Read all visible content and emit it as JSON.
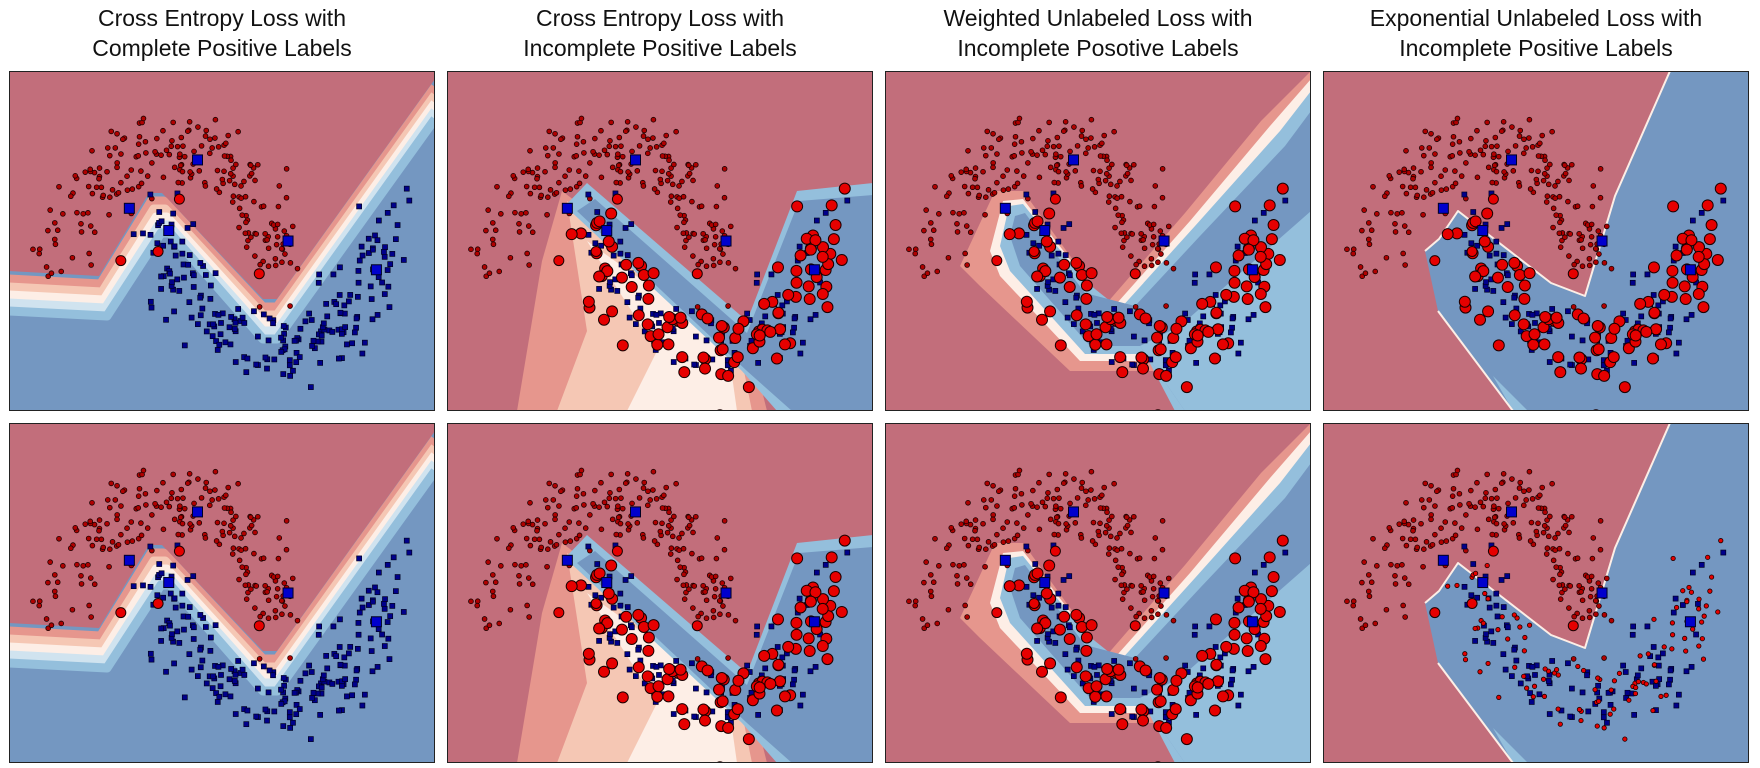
{
  "titles": [
    [
      "Cross Entropy Loss with",
      "Complete Positive Labels"
    ],
    [
      "Cross Entropy Loss with",
      "Incomplete Positive Labels"
    ],
    [
      "Weighted Unlabeled Loss with",
      "Incomplete Posotive Labels"
    ],
    [
      "Exponential Unlabeled Loss with",
      "Incomplete Positive Labels"
    ]
  ],
  "colors": {
    "class_red_region": "#c26e7b",
    "class_blue_region": "#7497c1",
    "light_blue_region": "#94bfdc",
    "light_red_region": "#e6968d",
    "pale_red_region": "#f5c7b4",
    "near_white_region": "#fdeee6",
    "red_marker": "#e60000",
    "dark_red_marker": "#b00000",
    "blue_marker": "#0000cd",
    "dark_blue_marker": "#00008b"
  },
  "chart_data": [
    {
      "type": "scatter",
      "id": "ce-complete-top",
      "title": "",
      "xlabel": "",
      "ylabel": "",
      "grid": false,
      "legend": "none",
      "series": [
        {
          "name": "",
          "marker": "circle"
        },
        {
          "name": "",
          "marker": "square"
        }
      ],
      "boundary_style": "smooth-v",
      "unlabeled_shown_as": "none"
    },
    {
      "type": "scatter",
      "id": "ce-incomplete-top",
      "title": "",
      "xlabel": "",
      "ylabel": "",
      "grid": false,
      "legend": "none",
      "series": [
        {
          "name": "",
          "marker": "circle"
        },
        {
          "name": "",
          "marker": "square"
        }
      ],
      "boundary_style": "wedge",
      "unlabeled_shown_as": "large-red-circles"
    },
    {
      "type": "scatter",
      "id": "wu-incomplete-top",
      "title": "",
      "xlabel": "",
      "ylabel": "",
      "grid": false,
      "legend": "none",
      "series": [
        {
          "name": "",
          "marker": "circle"
        },
        {
          "name": "",
          "marker": "square"
        }
      ],
      "boundary_style": "band",
      "unlabeled_shown_as": "large-red-circles"
    },
    {
      "type": "scatter",
      "id": "eu-incomplete-top",
      "title": "",
      "xlabel": "",
      "ylabel": "",
      "grid": false,
      "legend": "none",
      "series": [
        {
          "name": "",
          "marker": "circle"
        },
        {
          "name": "",
          "marker": "square"
        }
      ],
      "boundary_style": "sharp-v",
      "unlabeled_shown_as": "large-red-circles"
    },
    {
      "type": "scatter",
      "id": "ce-complete-bottom",
      "title": "",
      "xlabel": "",
      "ylabel": "",
      "grid": false,
      "legend": "none",
      "series": [
        {
          "name": "",
          "marker": "circle"
        },
        {
          "name": "",
          "marker": "square"
        }
      ],
      "boundary_style": "smooth-v",
      "unlabeled_shown_as": "none"
    },
    {
      "type": "scatter",
      "id": "ce-incomplete-bottom",
      "title": "",
      "xlabel": "",
      "ylabel": "",
      "grid": false,
      "legend": "none",
      "series": [
        {
          "name": "",
          "marker": "circle"
        },
        {
          "name": "",
          "marker": "square"
        }
      ],
      "boundary_style": "wedge",
      "unlabeled_shown_as": "large-red-circles"
    },
    {
      "type": "scatter",
      "id": "wu-incomplete-bottom",
      "title": "",
      "xlabel": "",
      "ylabel": "",
      "grid": false,
      "legend": "none",
      "series": [
        {
          "name": "",
          "marker": "circle"
        },
        {
          "name": "",
          "marker": "square"
        }
      ],
      "boundary_style": "band",
      "unlabeled_shown_as": "large-red-circles"
    },
    {
      "type": "scatter",
      "id": "eu-incomplete-bottom",
      "title": "",
      "xlabel": "",
      "ylabel": "",
      "grid": false,
      "legend": "none",
      "series": [
        {
          "name": "",
          "marker": "circle"
        },
        {
          "name": "",
          "marker": "square"
        }
      ],
      "boundary_style": "sharp-v",
      "unlabeled_shown_as": "small-red-dots"
    }
  ]
}
